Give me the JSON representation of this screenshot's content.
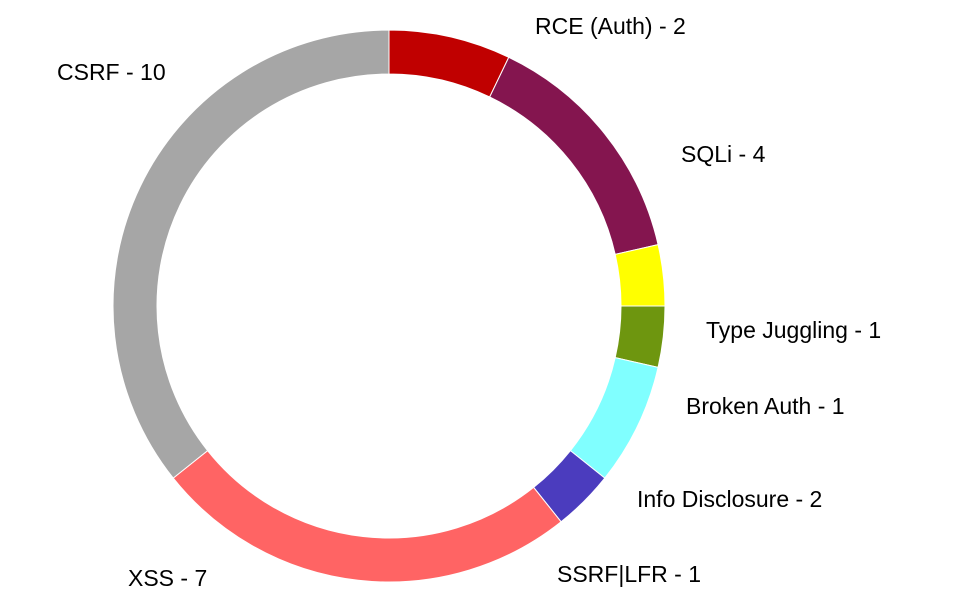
{
  "chart_data": {
    "type": "pie",
    "variant": "donut",
    "title": "",
    "start_angle_deg": 90,
    "direction": "clockwise",
    "slices": [
      {
        "label": "RCE (Auth) - 2",
        "category": "RCE (Auth)",
        "value": 2,
        "color": "#C00000"
      },
      {
        "label": "SQLi - 4",
        "category": "SQLi",
        "value": 4,
        "color": "#84154F"
      },
      {
        "label": "Type Juggling - 1",
        "category": "Type Juggling",
        "value": 1,
        "color": "#FFFF00"
      },
      {
        "label": "Broken Auth - 1",
        "category": "Broken Auth",
        "value": 1,
        "color": "#6E960F"
      },
      {
        "label": "Info Disclosure - 2",
        "category": "Info Disclosure",
        "value": 2,
        "color": "#80FFFF"
      },
      {
        "label": "SSRF|LFR - 1",
        "category": "SSRF|LFR",
        "value": 1,
        "color": "#4B3CBE"
      },
      {
        "label": "XSS - 7",
        "category": "XSS",
        "value": 7,
        "color": "#FF6464"
      },
      {
        "label": "CSRF - 10",
        "category": "CSRF",
        "value": 10,
        "color": "#A6A6A6"
      }
    ],
    "legend": "none",
    "data_labels": "outside"
  }
}
